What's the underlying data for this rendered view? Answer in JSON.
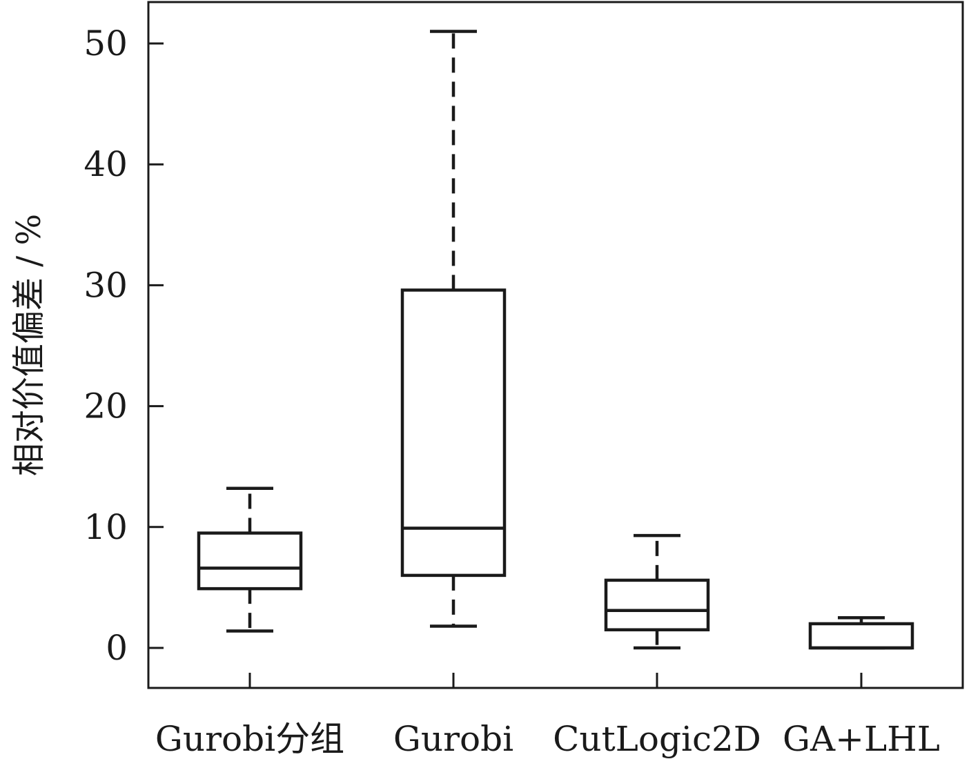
{
  "chart_data": {
    "type": "box",
    "title": "",
    "xlabel": "",
    "ylabel": "相对价值偏差 / %",
    "ylim": [
      -3.4,
      53.7
    ],
    "yticks": [
      0,
      10,
      20,
      30,
      40,
      50
    ],
    "ytick_labels": [
      "0",
      "10",
      "20",
      "30",
      "40",
      "50"
    ],
    "grid": false,
    "legend": "none",
    "categories": [
      "Gurobi分组",
      "Gurobi",
      "CutLogic2D",
      "GA+LHL"
    ],
    "boxes": [
      {
        "name": "Gurobi分组",
        "whisker_low": 1.4,
        "q1": 4.9,
        "median": 6.6,
        "q3": 9.5,
        "whisker_high": 13.2
      },
      {
        "name": "Gurobi",
        "whisker_low": 1.8,
        "q1": 6.0,
        "median": 9.9,
        "q3": 29.6,
        "whisker_high": 51.0
      },
      {
        "name": "CutLogic2D",
        "whisker_low": 0.0,
        "q1": 1.5,
        "median": 3.1,
        "q3": 5.6,
        "whisker_high": 9.3
      },
      {
        "name": "GA+LHL",
        "whisker_low": 0.0,
        "q1": 0.0,
        "median": 0.0,
        "q3": 2.0,
        "whisker_high": 2.5
      }
    ],
    "colors": {
      "stroke": "#1a1a1a",
      "fill": "#ffffff"
    }
  }
}
